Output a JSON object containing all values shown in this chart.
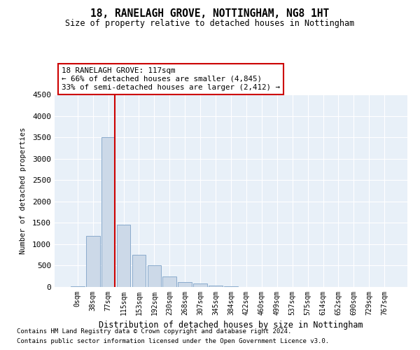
{
  "title1": "18, RANELAGH GROVE, NOTTINGHAM, NG8 1HT",
  "title2": "Size of property relative to detached houses in Nottingham",
  "xlabel": "Distribution of detached houses by size in Nottingham",
  "ylabel": "Number of detached properties",
  "bar_labels": [
    "0sqm",
    "38sqm",
    "77sqm",
    "115sqm",
    "153sqm",
    "192sqm",
    "230sqm",
    "268sqm",
    "307sqm",
    "345sqm",
    "384sqm",
    "422sqm",
    "460sqm",
    "499sqm",
    "537sqm",
    "575sqm",
    "614sqm",
    "652sqm",
    "690sqm",
    "729sqm",
    "767sqm"
  ],
  "bar_values": [
    10,
    1200,
    3500,
    1450,
    750,
    500,
    250,
    120,
    80,
    30,
    20,
    5,
    0,
    0,
    0,
    0,
    0,
    0,
    0,
    0,
    0
  ],
  "bar_color": "#ccd9e8",
  "bar_edge_color": "#8aabcc",
  "vline_color": "#cc0000",
  "annotation_text": "18 RANELAGH GROVE: 117sqm\n← 66% of detached houses are smaller (4,845)\n33% of semi-detached houses are larger (2,412) →",
  "annotation_box_color": "#ffffff",
  "annotation_box_edge": "#cc0000",
  "ylim": [
    0,
    4500
  ],
  "yticks": [
    0,
    500,
    1000,
    1500,
    2000,
    2500,
    3000,
    3500,
    4000,
    4500
  ],
  "footer1": "Contains HM Land Registry data © Crown copyright and database right 2024.",
  "footer2": "Contains public sector information licensed under the Open Government Licence v3.0.",
  "bg_color": "#ffffff",
  "plot_bg_color": "#e8f0f8"
}
